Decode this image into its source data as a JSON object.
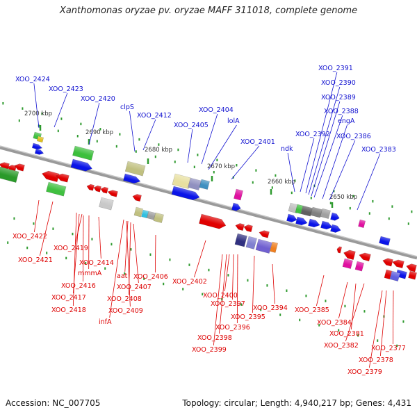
{
  "title": "Xanthomonas oryzae pv. oryzae MAFF 311018, complete genome",
  "footer": {
    "accession": "Accession: NC_007705",
    "summary": "Topology: circular; Length: 4,940,217 bp; Genes: 4,431"
  },
  "colors": {
    "plus_label": "#1010d0",
    "minus_label": "#dd0000",
    "backbone": "#808080",
    "tick": "#2e9a2e"
  },
  "scale_labels": [
    "2700 kbp",
    "2690 kbp",
    "2680 kbp",
    "2670 kbp",
    "2660 kbp",
    "2650 kbp"
  ],
  "top_labels": [
    "XOO_2424",
    "XOO_2423",
    "XOO_2420",
    "clpS",
    "XOO_2412",
    "XOO_2405",
    "XOO_2404",
    "lolA",
    "XOO_2401",
    "ndk",
    "XOO_2392",
    "XOO_2391",
    "XOO_2390",
    "XOO_2389",
    "XOO_2388",
    "engA",
    "XOO_2386",
    "XOO_2383"
  ],
  "bottom_labels": [
    "XOO_2422",
    "XOO_2421",
    "XOO_2419",
    "mmmA",
    "XOO_2414",
    "XOO_2416",
    "XOO_2417",
    "XOO_2418",
    "aat",
    "XOO_2406",
    "XOO_2407",
    "XOO_2408",
    "XOO_2409",
    "infA",
    "XOO_2402",
    "XOO_2400",
    "XOO_2397",
    "XOO_2396",
    "XOO_2395",
    "XOO_2398",
    "XOO_2399",
    "XOO_2394",
    "XOO_2385",
    "XOO_2384",
    "XOO_2381",
    "XOO_2382",
    "XOO_2377",
    "XOO_2378",
    "XOO_2379"
  ]
}
